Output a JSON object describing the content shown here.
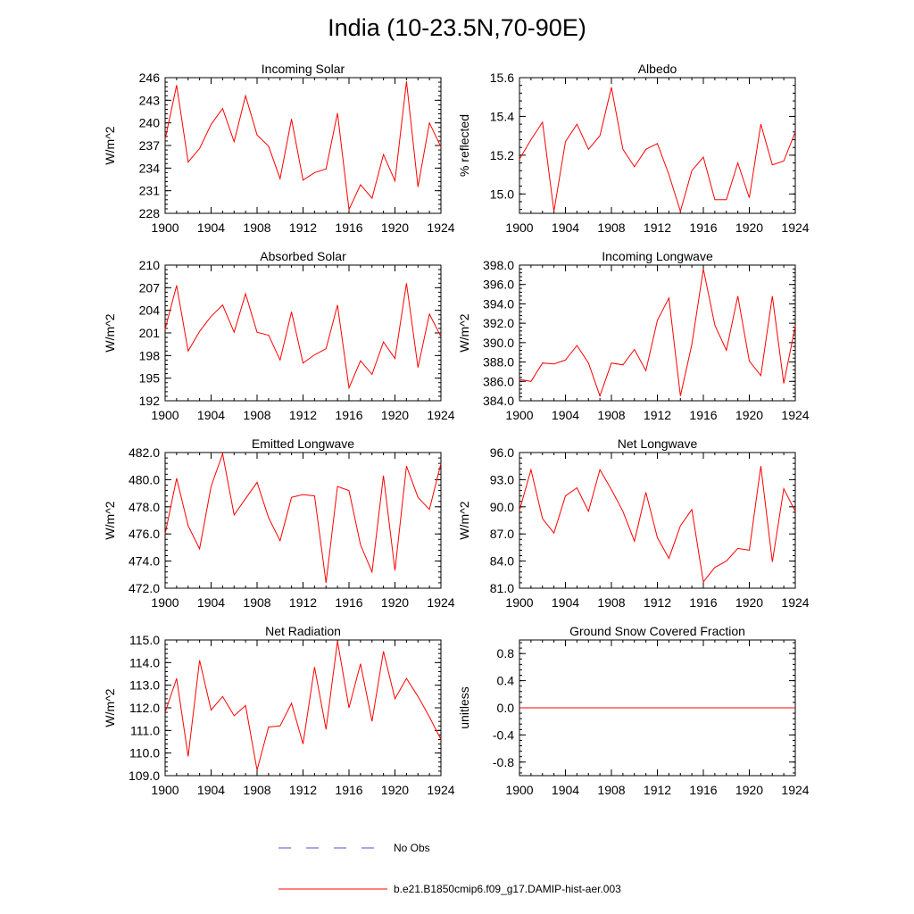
{
  "figure": {
    "title": "India (10-23.5N,70-90E)",
    "legend": [
      {
        "label": "No Obs",
        "color": "#4a56c8",
        "style": "dashed"
      },
      {
        "label": "b.e21.B1850cmip6.f09_g17.DAMIP-hist-aer.003",
        "color": "#ff0000",
        "style": "solid"
      }
    ]
  },
  "chart_data": [
    {
      "type": "line",
      "title": "Incoming Solar",
      "ylabel": "W/m^2",
      "xlim": [
        1900,
        1924
      ],
      "ylim": [
        228,
        246
      ],
      "xticks": [
        1900,
        1904,
        1908,
        1912,
        1916,
        1920,
        1924
      ],
      "yticks": [
        228,
        231,
        234,
        237,
        240,
        243,
        246
      ],
      "ytick_labels": [
        "228",
        "231",
        "234",
        "237",
        "240",
        "243",
        "246"
      ],
      "series": [
        {
          "color": "#ff0000",
          "x": [
            1900,
            1901,
            1902,
            1903,
            1904,
            1905,
            1906,
            1907,
            1908,
            1909,
            1910,
            1911,
            1912,
            1913,
            1914,
            1915,
            1916,
            1917,
            1918,
            1919,
            1920,
            1921,
            1922,
            1923,
            1924
          ],
          "values": [
            237.8,
            245.0,
            234.8,
            236.6,
            239.8,
            241.9,
            237.5,
            243.6,
            238.4,
            236.9,
            232.6,
            240.5,
            232.4,
            233.4,
            233.9,
            241.3,
            228.5,
            231.8,
            230.0,
            235.8,
            232.3,
            245.5,
            231.5,
            240.0,
            236.8
          ]
        }
      ]
    },
    {
      "type": "line",
      "title": "Albedo",
      "ylabel": "% reflected",
      "xlim": [
        1900,
        1924
      ],
      "ylim": [
        14.9,
        15.6
      ],
      "xticks": [
        1900,
        1904,
        1908,
        1912,
        1916,
        1920,
        1924
      ],
      "yticks": [
        15.0,
        15.2,
        15.4,
        15.6
      ],
      "ytick_labels": [
        "15.0",
        "15.2",
        "15.4",
        "15.6"
      ],
      "series": [
        {
          "color": "#ff0000",
          "x": [
            1900,
            1901,
            1902,
            1903,
            1904,
            1905,
            1906,
            1907,
            1908,
            1909,
            1910,
            1911,
            1912,
            1913,
            1914,
            1915,
            1916,
            1917,
            1918,
            1919,
            1920,
            1921,
            1922,
            1923,
            1924
          ],
          "values": [
            15.18,
            15.28,
            15.37,
            14.91,
            15.27,
            15.36,
            15.23,
            15.3,
            15.55,
            15.23,
            15.14,
            15.23,
            15.26,
            15.1,
            14.91,
            15.12,
            15.19,
            14.97,
            14.97,
            15.16,
            14.98,
            15.36,
            15.15,
            15.17,
            15.32
          ]
        }
      ]
    },
    {
      "type": "line",
      "title": "Absorbed Solar",
      "ylabel": "W/m^2",
      "xlim": [
        1900,
        1924
      ],
      "ylim": [
        192,
        210
      ],
      "xticks": [
        1900,
        1904,
        1908,
        1912,
        1916,
        1920,
        1924
      ],
      "yticks": [
        192,
        195,
        198,
        201,
        204,
        207,
        210
      ],
      "ytick_labels": [
        "192",
        "195",
        "198",
        "201",
        "204",
        "207",
        "210"
      ],
      "series": [
        {
          "color": "#ff0000",
          "x": [
            1900,
            1901,
            1902,
            1903,
            1904,
            1905,
            1906,
            1907,
            1908,
            1909,
            1910,
            1911,
            1912,
            1913,
            1914,
            1915,
            1916,
            1917,
            1918,
            1919,
            1920,
            1921,
            1922,
            1923,
            1924
          ],
          "values": [
            201.5,
            207.3,
            198.6,
            201.2,
            203.2,
            204.7,
            201.1,
            206.2,
            201.1,
            200.7,
            197.4,
            203.8,
            197.0,
            198.1,
            198.9,
            204.7,
            193.7,
            197.3,
            195.5,
            199.8,
            197.6,
            207.6,
            196.4,
            203.5,
            200.5
          ]
        }
      ]
    },
    {
      "type": "line",
      "title": "Incoming Longwave",
      "ylabel": "W/m^2",
      "xlim": [
        1900,
        1924
      ],
      "ylim": [
        384,
        398
      ],
      "xticks": [
        1900,
        1904,
        1908,
        1912,
        1916,
        1920,
        1924
      ],
      "yticks": [
        384,
        386,
        388,
        390,
        392,
        394,
        396,
        398
      ],
      "ytick_labels": [
        "384.0",
        "386.0",
        "388.0",
        "390.0",
        "392.0",
        "394.0",
        "396.0",
        "398.0"
      ],
      "series": [
        {
          "color": "#ff0000",
          "x": [
            1900,
            1901,
            1902,
            1903,
            1904,
            1905,
            1906,
            1907,
            1908,
            1909,
            1910,
            1911,
            1912,
            1913,
            1914,
            1915,
            1916,
            1917,
            1918,
            1919,
            1920,
            1921,
            1922,
            1923,
            1924
          ],
          "values": [
            386.2,
            386.0,
            387.9,
            387.8,
            388.2,
            389.7,
            387.9,
            384.5,
            387.9,
            387.7,
            389.3,
            387.1,
            392.3,
            394.6,
            384.5,
            389.8,
            397.6,
            391.8,
            389.2,
            394.8,
            388.1,
            386.6,
            394.8,
            385.8,
            391.7
          ]
        }
      ]
    },
    {
      "type": "line",
      "title": "Emitted Longwave",
      "ylabel": "W/m^2",
      "xlim": [
        1900,
        1924
      ],
      "ylim": [
        472,
        482
      ],
      "xticks": [
        1900,
        1904,
        1908,
        1912,
        1916,
        1920,
        1924
      ],
      "yticks": [
        472,
        474,
        476,
        478,
        480,
        482
      ],
      "ytick_labels": [
        "472.0",
        "474.0",
        "476.0",
        "478.0",
        "480.0",
        "482.0"
      ],
      "series": [
        {
          "color": "#ff0000",
          "x": [
            1900,
            1901,
            1902,
            1903,
            1904,
            1905,
            1906,
            1907,
            1908,
            1909,
            1910,
            1911,
            1912,
            1913,
            1914,
            1915,
            1916,
            1917,
            1918,
            1919,
            1920,
            1921,
            1922,
            1923,
            1924
          ],
          "values": [
            476.0,
            480.1,
            476.6,
            474.9,
            479.5,
            481.9,
            477.4,
            478.6,
            479.8,
            477.2,
            475.5,
            478.7,
            478.9,
            478.8,
            472.4,
            479.5,
            479.2,
            475.2,
            473.2,
            480.3,
            473.3,
            481.0,
            478.7,
            477.8,
            481.2
          ]
        }
      ]
    },
    {
      "type": "line",
      "title": "Net Longwave",
      "ylabel": "W/m^2",
      "xlim": [
        1900,
        1924
      ],
      "ylim": [
        81,
        96
      ],
      "xticks": [
        1900,
        1904,
        1908,
        1912,
        1916,
        1920,
        1924
      ],
      "yticks": [
        81,
        84,
        87,
        90,
        93,
        96
      ],
      "ytick_labels": [
        "81.0",
        "84.0",
        "87.0",
        "90.0",
        "93.0",
        "96.0"
      ],
      "series": [
        {
          "color": "#ff0000",
          "x": [
            1900,
            1901,
            1902,
            1903,
            1904,
            1905,
            1906,
            1907,
            1908,
            1909,
            1910,
            1911,
            1912,
            1913,
            1914,
            1915,
            1916,
            1917,
            1918,
            1919,
            1920,
            1921,
            1922,
            1923,
            1924
          ],
          "values": [
            89.6,
            94.1,
            88.7,
            87.1,
            91.2,
            92.1,
            89.5,
            94.1,
            91.9,
            89.5,
            86.2,
            91.6,
            86.6,
            84.3,
            87.9,
            89.7,
            81.7,
            83.3,
            84.0,
            85.4,
            85.2,
            94.5,
            83.9,
            92.0,
            89.5
          ]
        }
      ]
    },
    {
      "type": "line",
      "title": "Net Radiation",
      "ylabel": "W/m^2",
      "xlim": [
        1900,
        1924
      ],
      "ylim": [
        109,
        115
      ],
      "xticks": [
        1900,
        1904,
        1908,
        1912,
        1916,
        1920,
        1924
      ],
      "yticks": [
        109,
        110,
        111,
        112,
        113,
        114,
        115
      ],
      "ytick_labels": [
        "109.0",
        "110.0",
        "111.0",
        "112.0",
        "113.0",
        "114.0",
        "115.0"
      ],
      "series": [
        {
          "color": "#ff0000",
          "x": [
            1900,
            1901,
            1902,
            1903,
            1904,
            1905,
            1906,
            1907,
            1908,
            1909,
            1910,
            1911,
            1912,
            1913,
            1914,
            1915,
            1916,
            1917,
            1918,
            1919,
            1920,
            1921,
            1922,
            1923,
            1924
          ],
          "values": [
            111.8,
            113.3,
            109.85,
            114.1,
            111.9,
            112.5,
            111.65,
            112.1,
            109.25,
            111.15,
            111.2,
            112.2,
            110.4,
            113.8,
            111.05,
            114.95,
            112.0,
            113.95,
            111.4,
            114.5,
            112.4,
            113.3,
            112.5,
            111.6,
            110.6
          ]
        }
      ]
    },
    {
      "type": "line",
      "title": "Ground Snow Covered Fraction",
      "ylabel": "unitless",
      "xlim": [
        1900,
        1924
      ],
      "ylim": [
        -1.0,
        1.0
      ],
      "xticks": [
        1900,
        1904,
        1908,
        1912,
        1916,
        1920,
        1924
      ],
      "yticks": [
        -0.8,
        -0.4,
        0.0,
        0.4,
        0.8
      ],
      "ytick_labels": [
        "-0.8",
        "-0.4",
        "0.0",
        "0.4",
        "0.8"
      ],
      "series": [
        {
          "color": "#ff0000",
          "x": [
            1900,
            1924
          ],
          "values": [
            0.0,
            0.0
          ]
        }
      ]
    }
  ]
}
